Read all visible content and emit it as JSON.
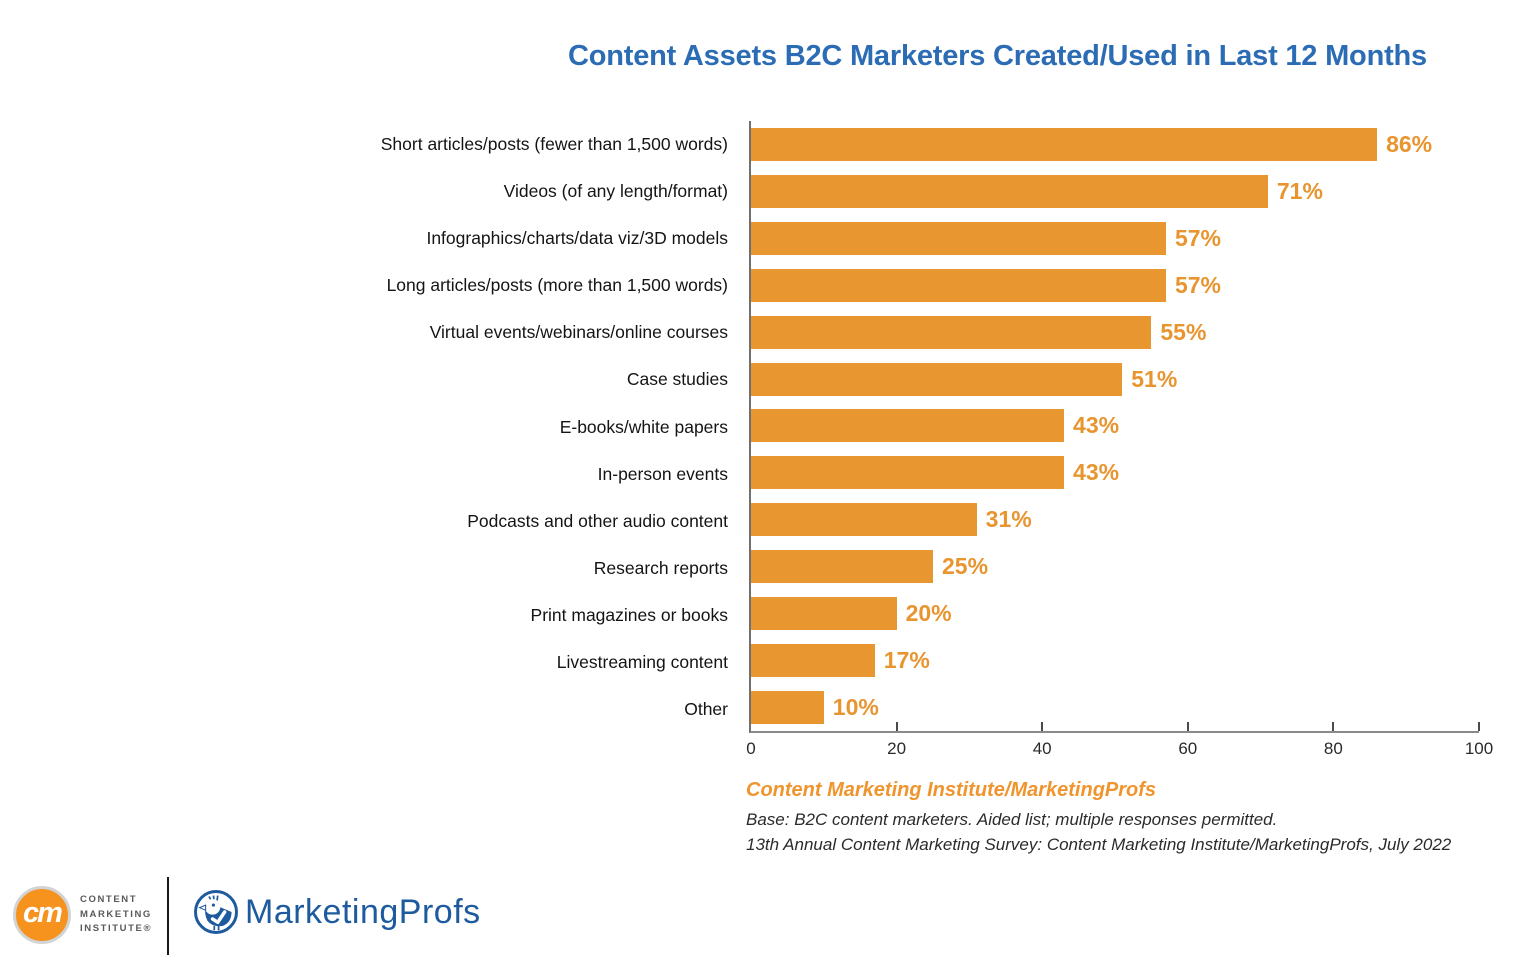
{
  "title": {
    "text": "Content Assets B2C Marketers Created/Used in Last 12 Months",
    "color": "#2B6CB4"
  },
  "chart_data": {
    "type": "bar",
    "orientation": "horizontal",
    "title": "Content Assets B2C Marketers Created/Used in Last 12 Months",
    "categories": [
      "Short articles/posts (fewer than 1,500 words)",
      "Videos (of any length/format)",
      "Infographics/charts/data viz/3D models",
      "Long articles/posts (more than 1,500 words)",
      "Virtual events/webinars/online courses",
      "Case studies",
      "E-books/white papers",
      "In-person events",
      "Podcasts and other audio content",
      "Research reports",
      "Print magazines or books",
      "Livestreaming content",
      "Other"
    ],
    "values": [
      86,
      71,
      57,
      57,
      55,
      51,
      43,
      43,
      31,
      25,
      20,
      17,
      10
    ],
    "value_labels": [
      "86%",
      "71%",
      "57%",
      "57%",
      "55%",
      "51%",
      "43%",
      "43%",
      "31%",
      "25%",
      "20%",
      "17%",
      "10%"
    ],
    "xlabel": "",
    "ylabel": "",
    "xlim": [
      0,
      100
    ],
    "x_ticks": [
      0,
      20,
      40,
      60,
      80,
      100
    ],
    "bar_color": "#E8962F",
    "value_label_color": "#E8952F",
    "grid": false,
    "legend": null
  },
  "source": {
    "heading": "Content Marketing Institute/MarketingProfs",
    "line1": "Base: B2C content marketers. Aided list; multiple responses permitted.",
    "line2": "13th Annual Content Marketing Survey: Content Marketing Institute/MarketingProfs, July 2022"
  },
  "footer": {
    "cmi": {
      "monogram": "cm",
      "lines": [
        "CONTENT",
        "MARKETING",
        "INSTITUTE®"
      ],
      "circle_color": "#F6921E"
    },
    "marketingprofs": {
      "name": "MarketingProfs",
      "color": "#1E5B9E"
    }
  }
}
